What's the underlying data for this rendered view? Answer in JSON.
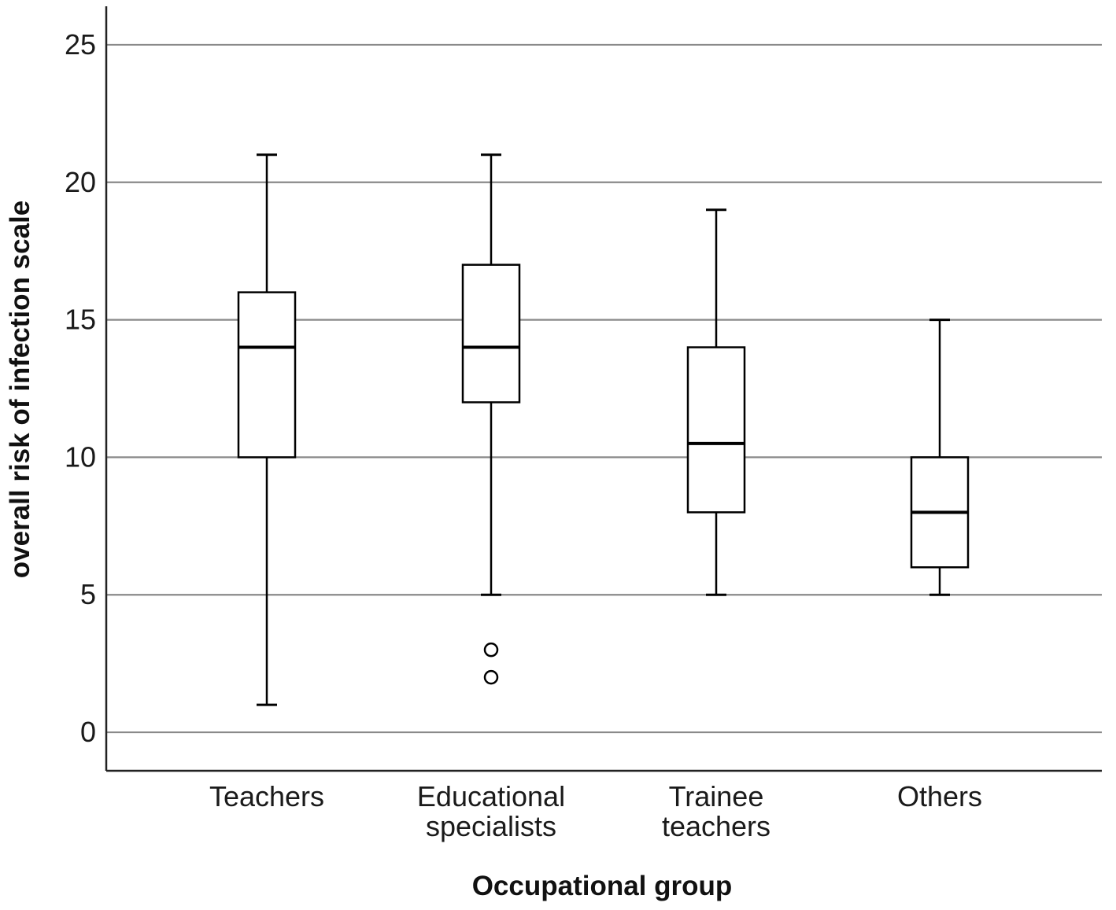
{
  "chart_data": {
    "type": "box",
    "xlabel": "Occupational group",
    "ylabel": "overall risk of infection scale",
    "ylim": [
      -1.4,
      26.4
    ],
    "yticks": [
      0,
      5,
      10,
      15,
      20,
      25
    ],
    "grid": true,
    "categories": [
      {
        "label_lines": [
          "Teachers"
        ]
      },
      {
        "label_lines": [
          "Educational",
          "specialists"
        ]
      },
      {
        "label_lines": [
          "Trainee",
          "teachers"
        ]
      },
      {
        "label_lines": [
          "Others"
        ]
      }
    ],
    "boxes": [
      {
        "min": 1,
        "q1": 10,
        "median": 14,
        "q3": 16,
        "max": 21,
        "outliers": []
      },
      {
        "min": 5,
        "q1": 12,
        "median": 14,
        "q3": 17,
        "max": 21,
        "outliers": [
          3,
          2
        ]
      },
      {
        "min": 5,
        "q1": 8,
        "median": 10.5,
        "q3": 14,
        "max": 19,
        "outliers": []
      },
      {
        "min": 5,
        "q1": 6,
        "median": 8,
        "q3": 10,
        "max": 15,
        "outliers": []
      }
    ]
  }
}
